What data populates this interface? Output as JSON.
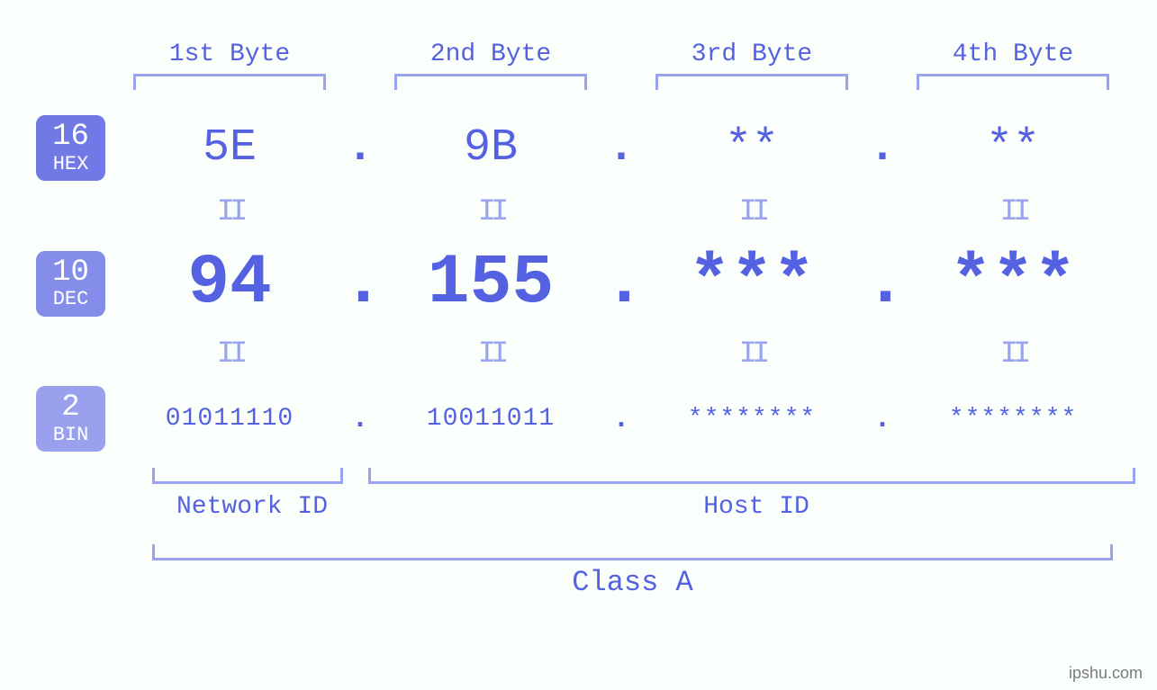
{
  "colors": {
    "primary": "#5461e0",
    "light": "#9aa4ee",
    "badge_hex_bg": "#7079e6",
    "badge_dec_bg": "#858dea",
    "badge_bin_bg": "#99a1ee",
    "background": "#fafffc",
    "watermark": "#7b7b7b"
  },
  "bytes": {
    "headers": [
      "1st Byte",
      "2nd Byte",
      "3rd Byte",
      "4th Byte"
    ]
  },
  "rows": {
    "hex": {
      "base_num": "16",
      "base_txt": "HEX",
      "values": [
        "5E",
        "9B",
        "**",
        "**"
      ]
    },
    "dec": {
      "base_num": "10",
      "base_txt": "DEC",
      "values": [
        "94",
        "155",
        "***",
        "***"
      ]
    },
    "bin": {
      "base_num": "2",
      "base_txt": "BIN",
      "values": [
        "01011110",
        "10011011",
        "********",
        "********"
      ]
    }
  },
  "equals_glyph": "II",
  "dot": ".",
  "bottom": {
    "network_label": "Network ID",
    "host_label": "Host ID",
    "class_label": "Class A"
  },
  "watermark": "ipshu.com",
  "fontsizes": {
    "byte_header": 28,
    "hex_value": 50,
    "dec_value": 78,
    "bin_value": 28,
    "equals": 34,
    "bottom_label": 28,
    "class_label": 32,
    "badge_num": 34,
    "badge_txt": 22
  }
}
